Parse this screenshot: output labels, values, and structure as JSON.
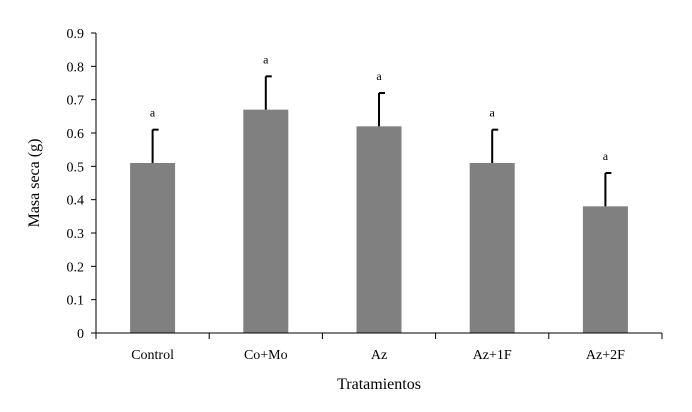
{
  "chart_data": {
    "type": "bar",
    "title": "",
    "xlabel": "Tratamientos",
    "ylabel": "Masa seca (g)",
    "categories": [
      "Control",
      "Co+Mo",
      "Az",
      "Az+1F",
      "Az+2F"
    ],
    "values": [
      0.51,
      0.67,
      0.62,
      0.51,
      0.38
    ],
    "error_plus": [
      0.1,
      0.1,
      0.1,
      0.1,
      0.1
    ],
    "significance_letters": [
      "a",
      "a",
      "a",
      "a",
      "a"
    ],
    "ylim": [
      0,
      0.9
    ],
    "yticks": [
      "0",
      "0.1",
      "0.2",
      "0.3",
      "0.4",
      "0.5",
      "0.6",
      "0.7",
      "0.8",
      "0.9"
    ],
    "grid": false,
    "legend": "none",
    "bar_color": "#808080",
    "error_bar_color": "#000000",
    "axis_color": "#000000"
  }
}
